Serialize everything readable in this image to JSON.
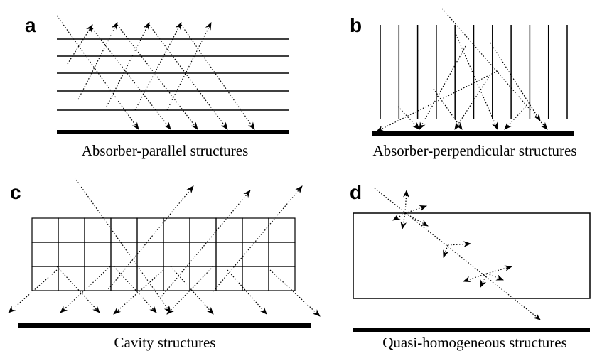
{
  "panels": [
    {
      "label": "a",
      "caption": "Absorber-parallel structures"
    },
    {
      "label": "b",
      "caption": "Absorber-perpendicular structures"
    },
    {
      "label": "c",
      "caption": "Cavity structures"
    },
    {
      "label": "d",
      "caption": "Quasi-homogeneous structures"
    }
  ]
}
